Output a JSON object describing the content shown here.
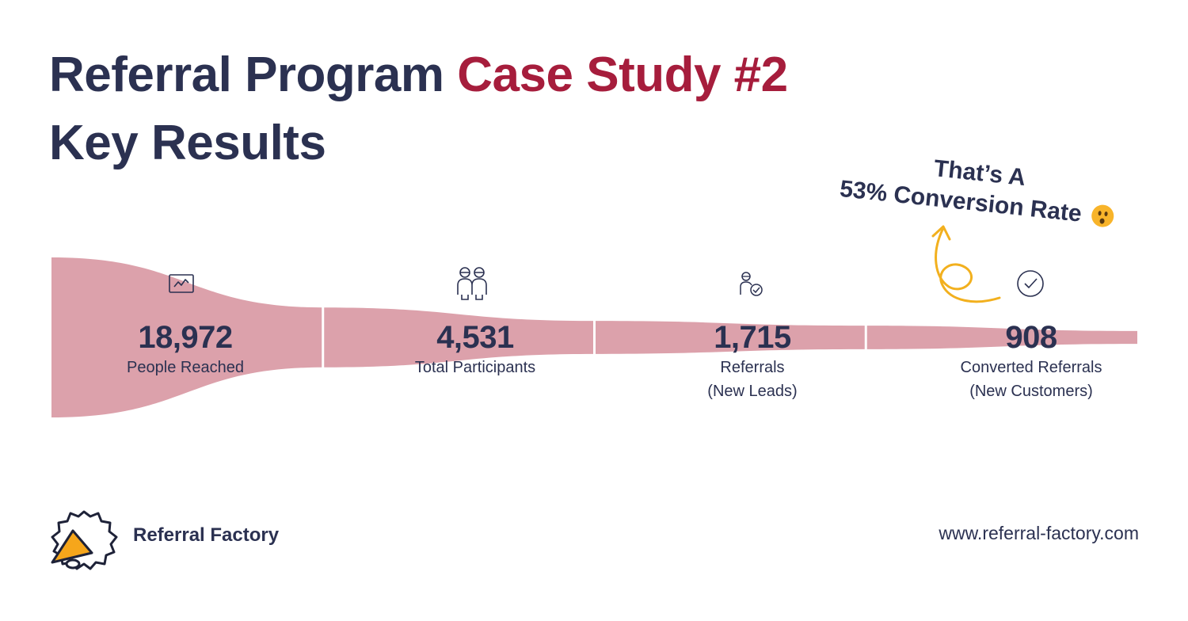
{
  "header": {
    "title_part1": "Referral Program ",
    "title_accent": "Case Study #2",
    "title_line2": "Key Results"
  },
  "annotation": {
    "line1": "That’s A",
    "line2": "53% Conversion Rate"
  },
  "colors": {
    "funnel": "#dca1ab",
    "title": "#2b3151",
    "accent": "#a61d3c",
    "arrow": "#f2b01e"
  },
  "chart_data": {
    "type": "funnel",
    "title": "",
    "stages": [
      {
        "value": 18972,
        "value_label": "18,972",
        "label": "People Reached",
        "icon": "chart-window-icon"
      },
      {
        "value": 4531,
        "value_label": "4,531",
        "label": "Total Participants",
        "icon": "two-people-icon"
      },
      {
        "value": 1715,
        "value_label": "1,715",
        "label": "Referrals\n(New Leads)",
        "icon": "person-check-icon"
      },
      {
        "value": 908,
        "value_label": "908",
        "label": "Converted Referrals\n(New Customers)",
        "icon": "check-circle-icon"
      }
    ]
  },
  "footer": {
    "brand": "Referral Factory",
    "website": "www.referral-factory.com"
  }
}
